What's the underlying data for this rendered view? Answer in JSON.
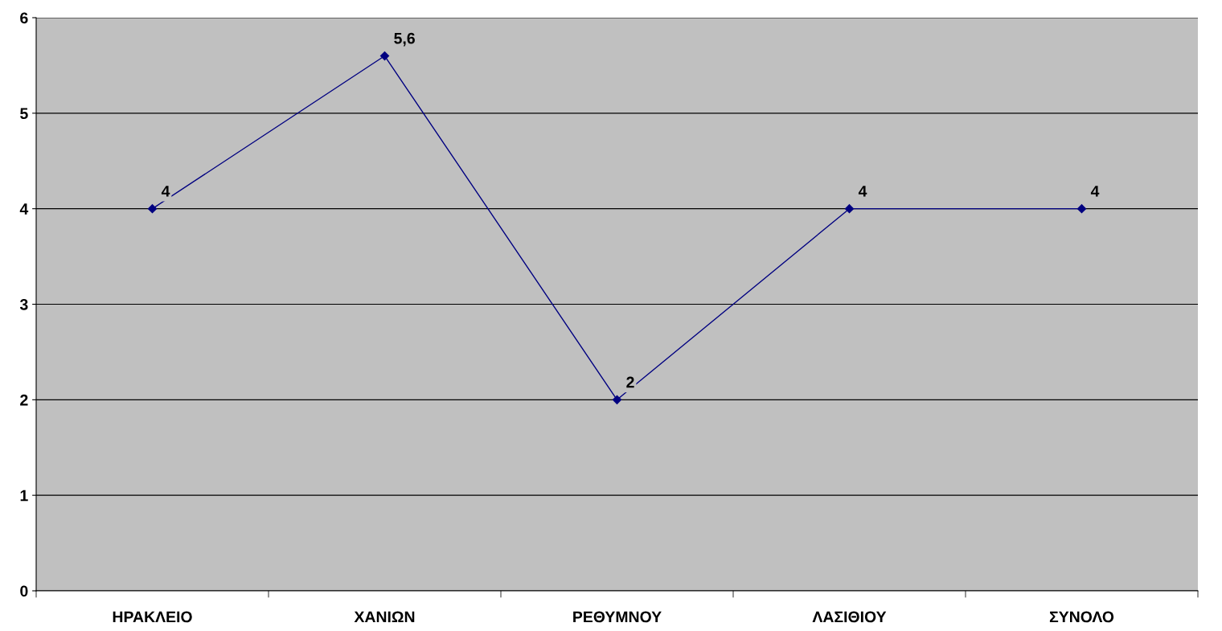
{
  "chart_data": {
    "type": "line",
    "categories": [
      "ΗΡΑΚΛΕΙΟ",
      "ΧΑΝΙΩΝ",
      "ΡΕΘΥΜΝΟΥ",
      "ΛΑΣΙΘΙΟΥ",
      "ΣΥΝΟΛΟ"
    ],
    "series": [
      {
        "color": "#000080",
        "values": [
          4,
          5.6,
          2,
          4,
          4
        ],
        "value_labels": [
          "4",
          "5,6",
          "2",
          "4",
          "4"
        ]
      }
    ],
    "ylim": [
      0,
      6
    ],
    "yticks": [
      0,
      1,
      2,
      3,
      4,
      5,
      6
    ],
    "grid": "y",
    "marker": "diamond",
    "line_style": "solid",
    "legend": false
  }
}
